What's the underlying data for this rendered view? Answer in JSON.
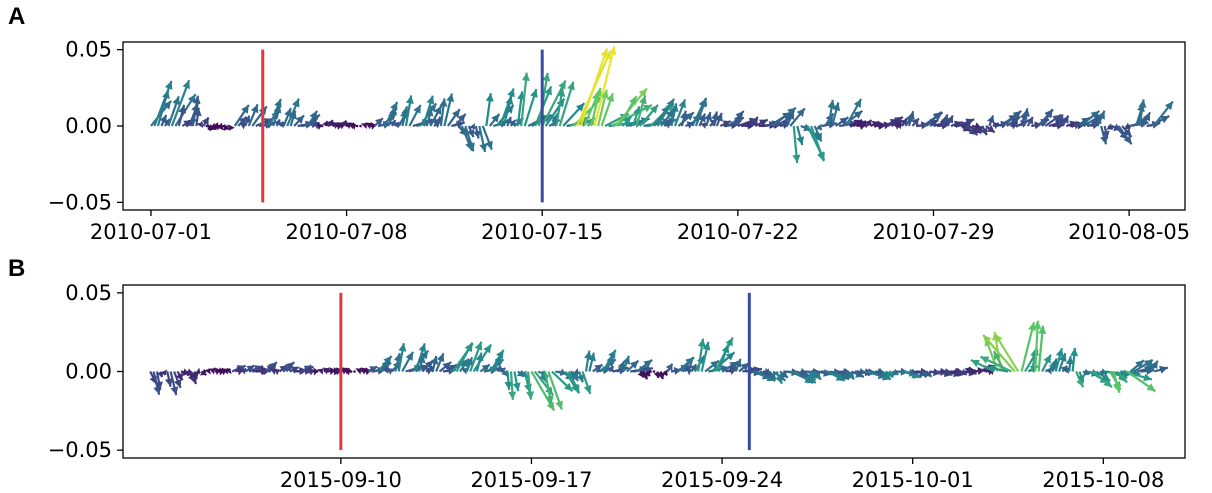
{
  "chart_data": [
    {
      "type": "quiver",
      "panel_label": "A",
      "title": "",
      "xlabel": "",
      "ylabel": "",
      "xlim": [
        "2010-06-30",
        "2010-08-07"
      ],
      "ylim": [
        -0.055,
        0.055
      ],
      "x_ticks": [
        "2010-07-01",
        "2010-07-08",
        "2010-07-15",
        "2010-07-22",
        "2010-07-29",
        "2010-08-05"
      ],
      "y_ticks": [
        "0.05",
        "0.00",
        "−0.05"
      ],
      "y_tick_values": [
        0.05,
        0.0,
        -0.05
      ],
      "grid": false,
      "colormap": [
        "#440154",
        "#3b528b",
        "#21918c",
        "#5ec962",
        "#fde725"
      ],
      "vertical_markers": [
        {
          "date": "2010-07-05",
          "color": "#e03a3a",
          "ymin": -0.05,
          "ymax": 0.05
        },
        {
          "date": "2010-07-15",
          "color": "#3b4ba0",
          "ymin": -0.05,
          "ymax": 0.05
        }
      ],
      "arrows_by_date": {
        "x": [
          "2010-07-01",
          "2010-07-02",
          "2010-07-03",
          "2010-07-04",
          "2010-07-05",
          "2010-07-06",
          "2010-07-07",
          "2010-07-08",
          "2010-07-09",
          "2010-07-10",
          "2010-07-11",
          "2010-07-12",
          "2010-07-13",
          "2010-07-14",
          "2010-07-15",
          "2010-07-16",
          "2010-07-17",
          "2010-07-18",
          "2010-07-19",
          "2010-07-20",
          "2010-07-21",
          "2010-07-22",
          "2010-07-23",
          "2010-07-24",
          "2010-07-25",
          "2010-07-26",
          "2010-07-27",
          "2010-07-28",
          "2010-07-29",
          "2010-07-30",
          "2010-07-31",
          "2010-08-01",
          "2010-08-02",
          "2010-08-03",
          "2010-08-04",
          "2010-08-05"
        ],
        "u": [
          0.012,
          0.006,
          -0.005,
          0.01,
          0.008,
          0.011,
          0.004,
          0.003,
          0.009,
          0.012,
          0.008,
          0.006,
          0.01,
          0.012,
          0.014,
          0.02,
          0.024,
          0.018,
          0.01,
          0.008,
          0.01,
          0.012,
          0.014,
          0.01,
          0.012,
          0.008,
          0.009,
          0.012,
          0.01,
          0.008,
          0.011,
          0.009,
          0.01,
          0.012,
          0.008,
          0.012
        ],
        "v": [
          0.03,
          0.02,
          -0.003,
          0.015,
          0.018,
          0.01,
          0.004,
          0.002,
          0.016,
          0.02,
          0.022,
          -0.018,
          0.025,
          0.035,
          0.03,
          0.055,
          0.025,
          0.02,
          0.018,
          0.02,
          0.01,
          0.006,
          0.012,
          -0.025,
          0.018,
          0.004,
          0.006,
          0.01,
          0.008,
          -0.006,
          0.01,
          0.012,
          0.008,
          0.01,
          -0.012,
          0.018
        ],
        "magnitude": [
          0.45,
          0.3,
          0.05,
          0.35,
          0.4,
          0.35,
          0.1,
          0.05,
          0.4,
          0.45,
          0.4,
          0.4,
          0.5,
          0.6,
          0.6,
          1.0,
          0.8,
          0.65,
          0.45,
          0.4,
          0.3,
          0.2,
          0.35,
          0.55,
          0.4,
          0.12,
          0.18,
          0.3,
          0.25,
          0.2,
          0.3,
          0.3,
          0.25,
          0.35,
          0.3,
          0.4
        ]
      }
    },
    {
      "type": "quiver",
      "panel_label": "B",
      "title": "",
      "xlabel": "",
      "ylabel": "",
      "xlim": [
        "2015-09-02",
        "2015-10-11"
      ],
      "ylim": [
        -0.055,
        0.055
      ],
      "x_ticks": [
        "2015-09-10",
        "2015-09-17",
        "2015-09-24",
        "2015-10-01",
        "2015-10-08"
      ],
      "y_ticks": [
        "0.05",
        "0.00",
        "−0.05"
      ],
      "y_tick_values": [
        0.05,
        0.0,
        -0.05
      ],
      "grid": false,
      "colormap": [
        "#440154",
        "#3b528b",
        "#21918c",
        "#5ec962",
        "#fde725"
      ],
      "vertical_markers": [
        {
          "date": "2015-09-10",
          "color": "#e03a3a",
          "ymin": -0.05,
          "ymax": 0.05
        },
        {
          "date": "2015-09-25",
          "color": "#3b4ba0",
          "ymin": -0.05,
          "ymax": 0.05
        }
      ],
      "arrows_by_date": {
        "x": [
          "2015-09-03",
          "2015-09-04",
          "2015-09-05",
          "2015-09-06",
          "2015-09-07",
          "2015-09-08",
          "2015-09-09",
          "2015-09-10",
          "2015-09-11",
          "2015-09-12",
          "2015-09-13",
          "2015-09-14",
          "2015-09-15",
          "2015-09-16",
          "2015-09-17",
          "2015-09-18",
          "2015-09-19",
          "2015-09-20",
          "2015-09-21",
          "2015-09-22",
          "2015-09-23",
          "2015-09-24",
          "2015-09-25",
          "2015-09-26",
          "2015-09-27",
          "2015-09-28",
          "2015-09-29",
          "2015-09-30",
          "2015-10-01",
          "2015-10-02",
          "2015-10-03",
          "2015-10-04",
          "2015-10-05",
          "2015-10-06",
          "2015-10-07",
          "2015-10-08",
          "2015-10-09"
        ],
        "u": [
          0.004,
          0.006,
          0.004,
          0.01,
          0.008,
          0.01,
          0.006,
          0.004,
          0.01,
          0.012,
          0.008,
          0.012,
          0.01,
          0.004,
          0.014,
          0.008,
          0.01,
          0.012,
          0.002,
          0.01,
          0.014,
          0.01,
          0.012,
          0.016,
          0.014,
          0.012,
          0.014,
          0.012,
          0.01,
          0.012,
          0.01,
          -0.02,
          0.008,
          0.004,
          0.012,
          0.018,
          0.012
        ],
        "v": [
          -0.015,
          -0.008,
          0.002,
          0.004,
          0.006,
          0.004,
          0.002,
          0.002,
          0.01,
          0.018,
          0.012,
          0.02,
          0.014,
          -0.018,
          -0.025,
          -0.015,
          0.014,
          0.01,
          -0.005,
          0.01,
          0.022,
          0.008,
          -0.006,
          -0.008,
          -0.006,
          -0.005,
          -0.005,
          -0.004,
          -0.004,
          -0.002,
          0.004,
          0.026,
          0.034,
          0.015,
          -0.01,
          -0.014,
          0.008
        ],
        "magnitude": [
          0.25,
          0.15,
          0.05,
          0.25,
          0.25,
          0.25,
          0.1,
          0.05,
          0.4,
          0.45,
          0.35,
          0.55,
          0.5,
          0.6,
          0.7,
          0.55,
          0.45,
          0.4,
          0.05,
          0.4,
          0.55,
          0.35,
          0.4,
          0.45,
          0.45,
          0.4,
          0.45,
          0.5,
          0.3,
          0.2,
          0.15,
          0.85,
          0.75,
          0.5,
          0.6,
          0.75,
          0.4
        ]
      }
    }
  ]
}
